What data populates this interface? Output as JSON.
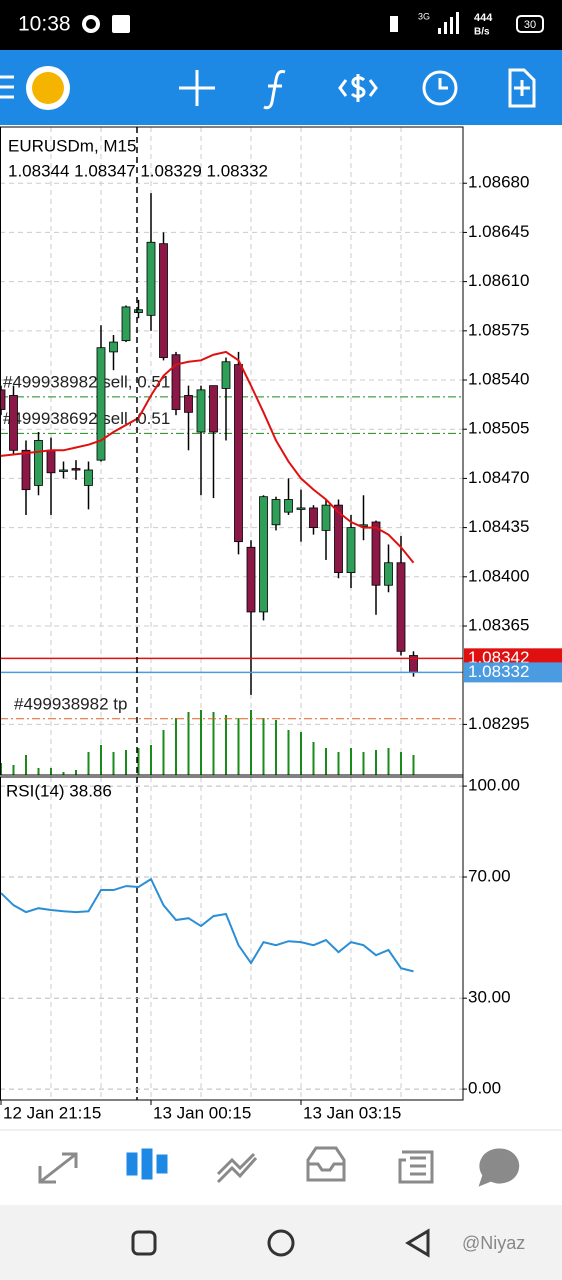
{
  "status_bar": {
    "time": "10:38",
    "network": "3G",
    "speed": "444",
    "speed_unit": "B/s",
    "battery": "30"
  },
  "chart_data": [
    {
      "type": "candlestick",
      "title": "EURUSDm, M15",
      "ohlc_text": "1.08344 1.08347 1.08329 1.08332",
      "categories": [
        "12 Jan 21:15",
        null,
        null,
        null,
        null,
        null,
        null,
        null,
        null,
        null,
        null,
        null,
        "13 Jan 00:15",
        null,
        null,
        null,
        null,
        null,
        null,
        null,
        null,
        null,
        null,
        null,
        "13 Jan 03:15",
        null,
        null,
        null,
        null,
        null,
        null,
        null,
        null,
        null
      ],
      "open": [
        1.08533,
        1.08529,
        1.0849,
        1.08465,
        1.0849,
        1.08476,
        1.08477,
        1.08465,
        1.08483,
        1.0856,
        1.08568,
        1.08588,
        1.08586,
        1.08637,
        1.08558,
        1.08529,
        1.08503,
        1.08536,
        1.08534,
        1.08551,
        1.08421,
        1.08375,
        1.08437,
        1.08446,
        1.08448,
        1.08449,
        1.08433,
        1.08451,
        1.08403,
        1.08437,
        1.08439,
        1.08394,
        1.0841,
        1.08344
      ],
      "high": [
        1.08536,
        1.08536,
        1.08497,
        1.08503,
        1.08499,
        1.08482,
        1.08483,
        1.08482,
        1.08579,
        1.08572,
        1.08593,
        1.08597,
        1.08673,
        1.08645,
        1.0856,
        1.08536,
        1.08536,
        1.08536,
        1.08556,
        1.0856,
        1.08426,
        1.08458,
        1.08457,
        1.0847,
        1.08462,
        1.08451,
        1.08455,
        1.08455,
        1.08444,
        1.08458,
        1.0844,
        1.08423,
        1.08429,
        1.08347
      ],
      "low": [
        1.08515,
        1.08487,
        1.08444,
        1.08458,
        1.08444,
        1.0847,
        1.08469,
        1.08448,
        1.08482,
        1.08547,
        1.08567,
        1.08584,
        1.08575,
        1.08554,
        1.08515,
        1.0849,
        1.08458,
        1.08456,
        1.08497,
        1.08416,
        1.08316,
        1.08369,
        1.08433,
        1.08444,
        1.08425,
        1.0843,
        1.08412,
        1.08399,
        1.08392,
        1.08426,
        1.08373,
        1.08389,
        1.08344,
        1.08329
      ],
      "close": [
        1.08519,
        1.0849,
        1.08462,
        1.08497,
        1.08474,
        1.08476,
        1.08476,
        1.08476,
        1.08563,
        1.08567,
        1.08592,
        1.0859,
        1.08638,
        1.08556,
        1.08519,
        1.08517,
        1.08533,
        1.08503,
        1.08553,
        1.08425,
        1.08375,
        1.08457,
        1.08455,
        1.08455,
        1.08449,
        1.08435,
        1.08451,
        1.08403,
        1.08435,
        1.08437,
        1.08394,
        1.0841,
        1.08347,
        1.08332
      ],
      "up_color": "#2e9e58",
      "down_color": "#8b1846",
      "ma": {
        "color": "#e01010",
        "values": [
          1.08486,
          1.08487,
          1.08488,
          1.08489,
          1.0849,
          1.0849,
          1.08492,
          1.08494,
          1.08497,
          1.08503,
          1.08508,
          1.08513,
          1.08529,
          1.08543,
          1.08551,
          1.08553,
          1.08554,
          1.08558,
          1.0856,
          1.08554,
          1.08536,
          1.08517,
          1.08497,
          1.08482,
          1.0847,
          1.08462,
          1.08455,
          1.08446,
          1.08439,
          1.08435,
          1.08435,
          1.0843,
          1.08421,
          1.0841
        ]
      },
      "volume": {
        "color": "#1a8a1a",
        "values": [
          12,
          10,
          20,
          7,
          7,
          3,
          5,
          23,
          30,
          23,
          25,
          27,
          30,
          45,
          57,
          63,
          65,
          63,
          60,
          57,
          65,
          57,
          55,
          45,
          43,
          33,
          27,
          23,
          27,
          23,
          25,
          27,
          23,
          20
        ]
      },
      "ylim": [
        1.08259,
        1.0872
      ],
      "yticks": [
        {
          "value": 1.0868,
          "label": "1.08680"
        },
        {
          "value": 1.08645,
          "label": "1.08645"
        },
        {
          "value": 1.0861,
          "label": "1.08610"
        },
        {
          "value": 1.08575,
          "label": "1.08575"
        },
        {
          "value": 1.0854,
          "label": "1.08540"
        },
        {
          "value": 1.08505,
          "label": "1.08505"
        },
        {
          "value": 1.0847,
          "label": "1.08470"
        },
        {
          "value": 1.08435,
          "label": "1.08435"
        },
        {
          "value": 1.084,
          "label": "1.08400"
        },
        {
          "value": 1.08365,
          "label": "1.08365"
        },
        {
          "value": 1.08295,
          "label": "1.08295"
        }
      ],
      "grid": true,
      "bid": {
        "value": 1.08342,
        "label": "1.08342",
        "color": "#e01010"
      },
      "ask": {
        "value": 1.08332,
        "label": "1.08332",
        "color": "#4a9be0"
      },
      "order_lines": [
        {
          "label": "#499938982 sell, 0.51",
          "value": 1.08528,
          "color": "#1a8a1a"
        },
        {
          "label": "#499938692 sell, 0.51",
          "value": 1.08502,
          "color": "#1a8a1a"
        },
        {
          "label": "#499938982 tp",
          "value": 1.08299,
          "color": "#e06020"
        }
      ]
    },
    {
      "type": "line",
      "title": "RSI(14) 38.86",
      "color": "#2b8fd6",
      "values": [
        64.7,
        60.7,
        58.4,
        59.7,
        59.1,
        58.7,
        58.4,
        58.7,
        65.7,
        65.7,
        67,
        66.7,
        69.3,
        60.7,
        55.8,
        56.4,
        53.8,
        57.1,
        57.8,
        47.5,
        41.6,
        48.5,
        47.5,
        48.8,
        48.5,
        47.5,
        49.2,
        45.2,
        48.5,
        47.5,
        44.2,
        45.9,
        39.9,
        38.86
      ],
      "ylim": [
        -3.6,
        103
      ],
      "yticks": [
        {
          "value": 100,
          "label": "100.00"
        },
        {
          "value": 70,
          "label": "70.00"
        },
        {
          "value": 30,
          "label": "30.00"
        },
        {
          "value": 0,
          "label": "0.00"
        }
      ],
      "grid": true
    }
  ],
  "watermark": "@Niyaz"
}
